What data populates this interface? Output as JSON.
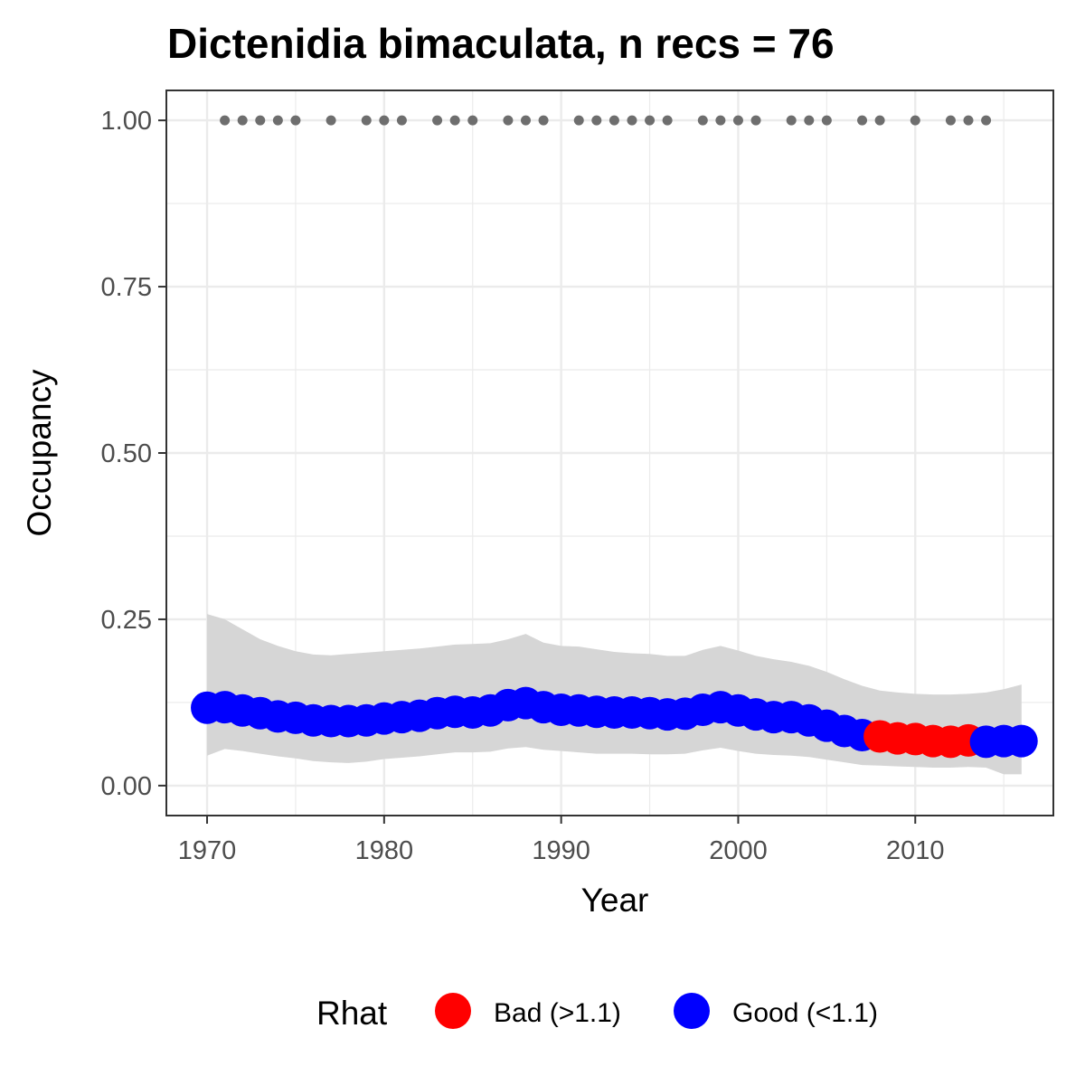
{
  "chart_data": {
    "type": "line",
    "title": "Dictenidia bimaculata, n recs = 76",
    "xlabel": "Year",
    "ylabel": "Occupancy",
    "xlim": [
      1967.7,
      2017.8
    ],
    "ylim": [
      -0.045,
      1.045
    ],
    "x_ticks": [
      1970,
      1980,
      1990,
      2000,
      2010
    ],
    "x_tick_labels": [
      "1970",
      "1980",
      "1990",
      "2000",
      "2010"
    ],
    "y_ticks": [
      0,
      0.25,
      0.5,
      0.75,
      1
    ],
    "y_tick_labels": [
      "0.00",
      "0.25",
      "0.50",
      "0.75",
      "1.00"
    ],
    "grid": true,
    "legend": {
      "title": "Rhat",
      "position": "bottom",
      "entries": [
        {
          "label": "Bad (>1.1)",
          "color": "#ff0000"
        },
        {
          "label": "Good (<1.1)",
          "color": "#0000ff"
        }
      ]
    },
    "colors": {
      "good": "#0000ff",
      "bad": "#ff0000",
      "ribbon": "#d6d6d6",
      "records": "#6e6e6e",
      "grid": "#ebebeb",
      "border": "#333333"
    },
    "years": [
      1970,
      1971,
      1972,
      1973,
      1974,
      1975,
      1976,
      1977,
      1978,
      1979,
      1980,
      1981,
      1982,
      1983,
      1984,
      1985,
      1986,
      1987,
      1988,
      1989,
      1990,
      1991,
      1992,
      1993,
      1994,
      1995,
      1996,
      1997,
      1998,
      1999,
      2000,
      2001,
      2002,
      2003,
      2004,
      2005,
      2006,
      2007,
      2008,
      2009,
      2010,
      2011,
      2012,
      2013,
      2014,
      2015,
      2016
    ],
    "occupancy": [
      0.117,
      0.118,
      0.113,
      0.109,
      0.104,
      0.102,
      0.098,
      0.097,
      0.097,
      0.098,
      0.101,
      0.103,
      0.105,
      0.109,
      0.111,
      0.11,
      0.113,
      0.121,
      0.124,
      0.118,
      0.114,
      0.113,
      0.111,
      0.11,
      0.11,
      0.109,
      0.107,
      0.108,
      0.114,
      0.118,
      0.113,
      0.107,
      0.103,
      0.103,
      0.098,
      0.09,
      0.082,
      0.076,
      0.074,
      0.071,
      0.07,
      0.067,
      0.066,
      0.068,
      0.066,
      0.067,
      0.067
    ],
    "lower": [
      0.045,
      0.055,
      0.052,
      0.048,
      0.044,
      0.041,
      0.037,
      0.035,
      0.034,
      0.036,
      0.04,
      0.042,
      0.044,
      0.047,
      0.05,
      0.05,
      0.051,
      0.056,
      0.058,
      0.054,
      0.052,
      0.05,
      0.048,
      0.048,
      0.048,
      0.047,
      0.047,
      0.048,
      0.053,
      0.057,
      0.052,
      0.048,
      0.046,
      0.045,
      0.043,
      0.039,
      0.035,
      0.031,
      0.03,
      0.029,
      0.028,
      0.027,
      0.027,
      0.028,
      0.027,
      0.017,
      0.017
    ],
    "upper": [
      0.258,
      0.25,
      0.235,
      0.22,
      0.21,
      0.202,
      0.197,
      0.196,
      0.198,
      0.2,
      0.202,
      0.204,
      0.206,
      0.209,
      0.212,
      0.213,
      0.214,
      0.22,
      0.228,
      0.215,
      0.21,
      0.209,
      0.205,
      0.201,
      0.199,
      0.198,
      0.195,
      0.195,
      0.204,
      0.21,
      0.203,
      0.195,
      0.19,
      0.186,
      0.18,
      0.171,
      0.16,
      0.15,
      0.143,
      0.14,
      0.138,
      0.137,
      0.137,
      0.138,
      0.14,
      0.145,
      0.152
    ],
    "rhat_status": [
      "good",
      "good",
      "good",
      "good",
      "good",
      "good",
      "good",
      "good",
      "good",
      "good",
      "good",
      "good",
      "good",
      "good",
      "good",
      "good",
      "good",
      "good",
      "good",
      "good",
      "good",
      "good",
      "good",
      "good",
      "good",
      "good",
      "good",
      "good",
      "good",
      "good",
      "good",
      "good",
      "good",
      "good",
      "good",
      "good",
      "good",
      "good",
      "bad",
      "bad",
      "bad",
      "bad",
      "bad",
      "bad",
      "good",
      "good",
      "good"
    ],
    "record_years": [
      1971,
      1972,
      1973,
      1974,
      1975,
      1977,
      1979,
      1980,
      1981,
      1983,
      1984,
      1985,
      1987,
      1988,
      1989,
      1991,
      1992,
      1993,
      1994,
      1995,
      1996,
      1998,
      1999,
      2000,
      2001,
      2003,
      2004,
      2005,
      2007,
      2008,
      2010,
      2012,
      2013,
      2014
    ],
    "record_value": 1.0
  }
}
